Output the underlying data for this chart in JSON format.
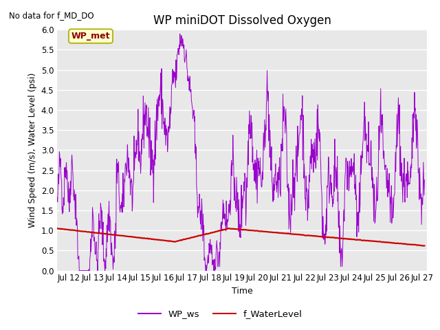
{
  "title": "WP miniDOT Dissolved Oxygen",
  "no_data_text": "No data for f_MD_DO",
  "ylabel": "Wind Speed (m/s), Water Level (psi)",
  "xlabel": "Time",
  "ylim": [
    0.0,
    6.0
  ],
  "yticks": [
    0.0,
    0.5,
    1.0,
    1.5,
    2.0,
    2.5,
    3.0,
    3.5,
    4.0,
    4.5,
    5.0,
    5.5,
    6.0
  ],
  "xlim_start": 11.5,
  "xlim_end": 27.2,
  "xtick_labels": [
    "Jul 12",
    "Jul 13",
    "Jul 14",
    "Jul 15",
    "Jul 16",
    "Jul 17",
    "Jul 18",
    "Jul 19",
    "Jul 20",
    "Jul 21",
    "Jul 22",
    "Jul 23",
    "Jul 24",
    "Jul 25",
    "Jul 26",
    "Jul 27"
  ],
  "xtick_positions": [
    12,
    13,
    14,
    15,
    16,
    17,
    18,
    19,
    20,
    21,
    22,
    23,
    24,
    25,
    26,
    27
  ],
  "wp_ws_color": "#9900CC",
  "f_wl_color": "#CC0000",
  "legend_label_ws": "WP_ws",
  "legend_label_wl": "f_WaterLevel",
  "box_label": "WP_met",
  "background_color": "#E8E8E8",
  "grid_color": "#FFFFFF",
  "title_fontsize": 12,
  "axis_label_fontsize": 9,
  "tick_fontsize": 8.5
}
